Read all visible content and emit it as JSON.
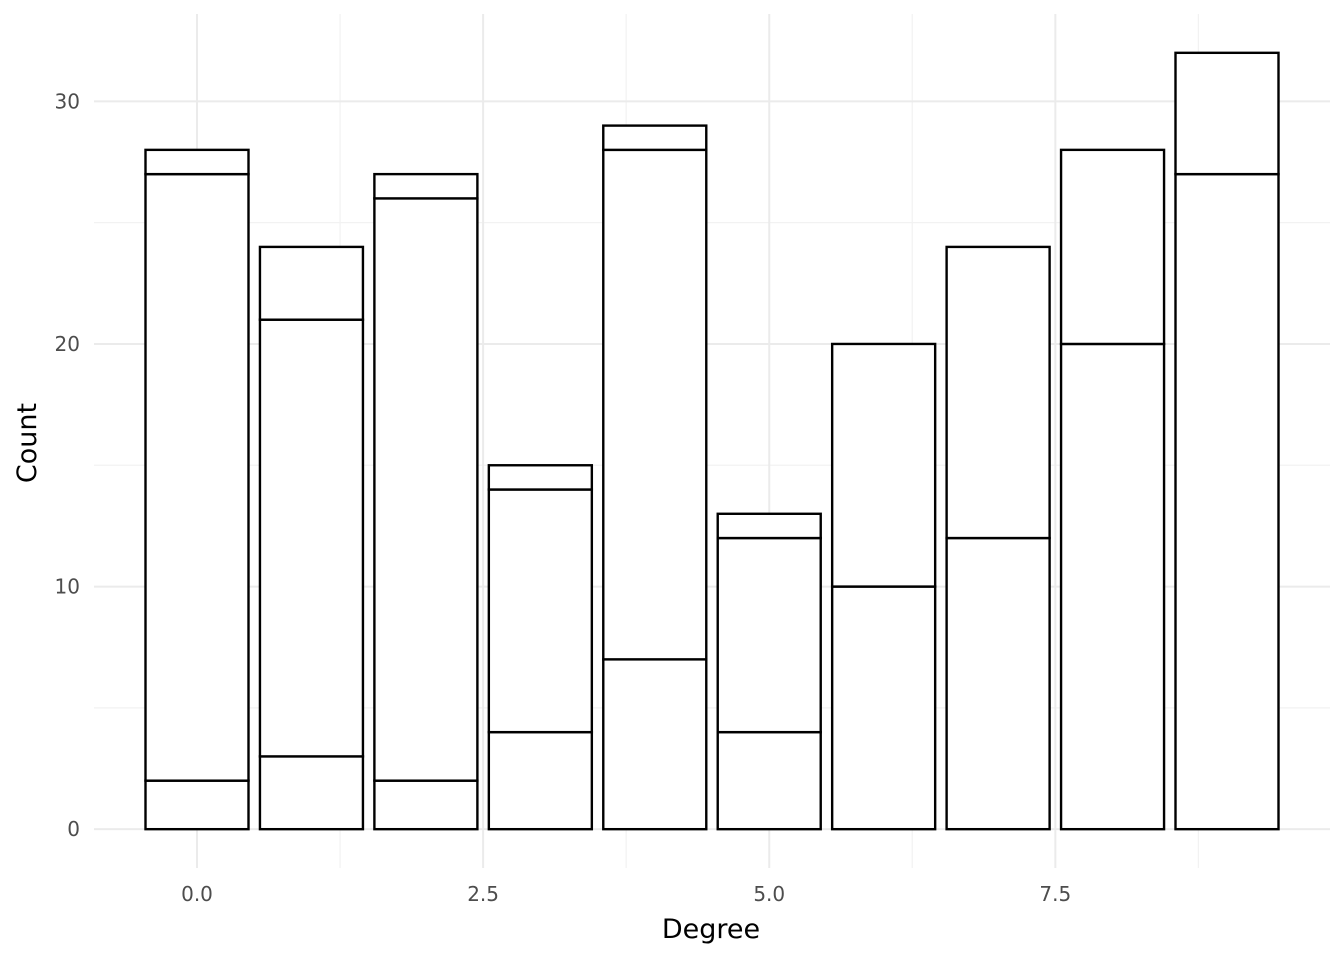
{
  "chart_data": {
    "type": "bar",
    "stacked": true,
    "title": "",
    "xlabel": "Degree",
    "ylabel": "Count",
    "x": [
      0,
      1,
      2,
      3,
      4,
      5,
      6,
      7,
      8,
      9
    ],
    "stacks": [
      [
        2,
        25,
        1
      ],
      [
        3,
        18,
        3
      ],
      [
        2,
        24,
        1
      ],
      [
        4,
        10,
        1
      ],
      [
        7,
        21,
        1
      ],
      [
        4,
        8,
        1
      ],
      [
        10,
        10
      ],
      [
        12,
        12
      ],
      [
        20,
        8
      ],
      [
        27,
        5
      ]
    ],
    "totals": [
      28,
      24,
      27,
      15,
      29,
      13,
      20,
      24,
      28,
      32
    ],
    "xlim": [
      -0.9,
      9.9
    ],
    "ylim": [
      -1.6,
      33.6
    ],
    "x_ticks": [
      {
        "value": 0,
        "label": "0.0"
      },
      {
        "value": 2.5,
        "label": "2.5"
      },
      {
        "value": 5,
        "label": "5.0"
      },
      {
        "value": 7.5,
        "label": "7.5"
      }
    ],
    "y_ticks": [
      {
        "value": 0,
        "label": "0"
      },
      {
        "value": 10,
        "label": "10"
      },
      {
        "value": 20,
        "label": "20"
      },
      {
        "value": 30,
        "label": "30"
      }
    ],
    "x_minor_ticks": [
      1.25,
      3.75,
      6.25,
      8.75
    ],
    "y_minor_ticks": [
      5,
      15,
      25
    ],
    "bar_width": 0.9,
    "grid": true,
    "legend": "none",
    "bar_fill": "#ffffff",
    "bar_stroke": "#000000",
    "background": "#ffffff"
  }
}
